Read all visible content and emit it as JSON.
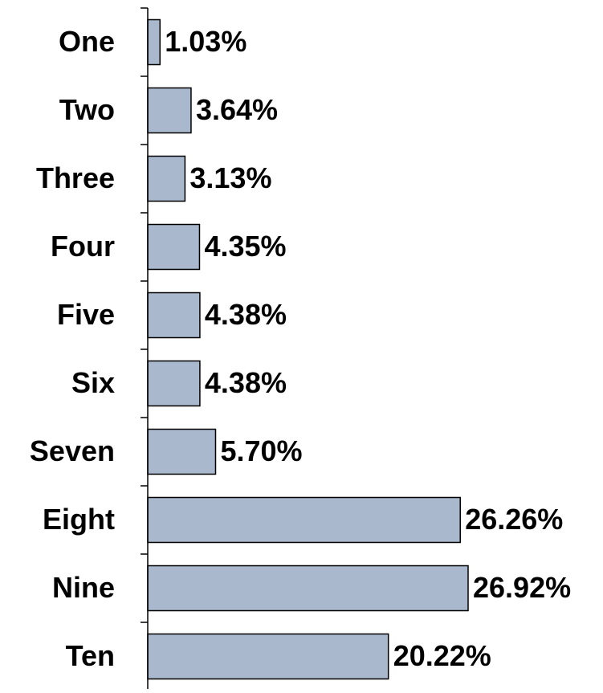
{
  "chart_data": {
    "type": "bar",
    "orientation": "horizontal",
    "categories": [
      "One",
      "Two",
      "Three",
      "Four",
      "Five",
      "Six",
      "Seven",
      "Eight",
      "Nine",
      "Ten"
    ],
    "values": [
      1.03,
      3.64,
      3.13,
      4.35,
      4.38,
      4.38,
      5.7,
      26.26,
      26.92,
      20.22
    ],
    "value_labels": [
      "1.03%",
      "3.64%",
      "3.13%",
      "4.35%",
      "4.38%",
      "4.38%",
      "5.70%",
      "26.26%",
      "26.92%",
      "20.22%"
    ],
    "color": "#a9b8cc"
  }
}
